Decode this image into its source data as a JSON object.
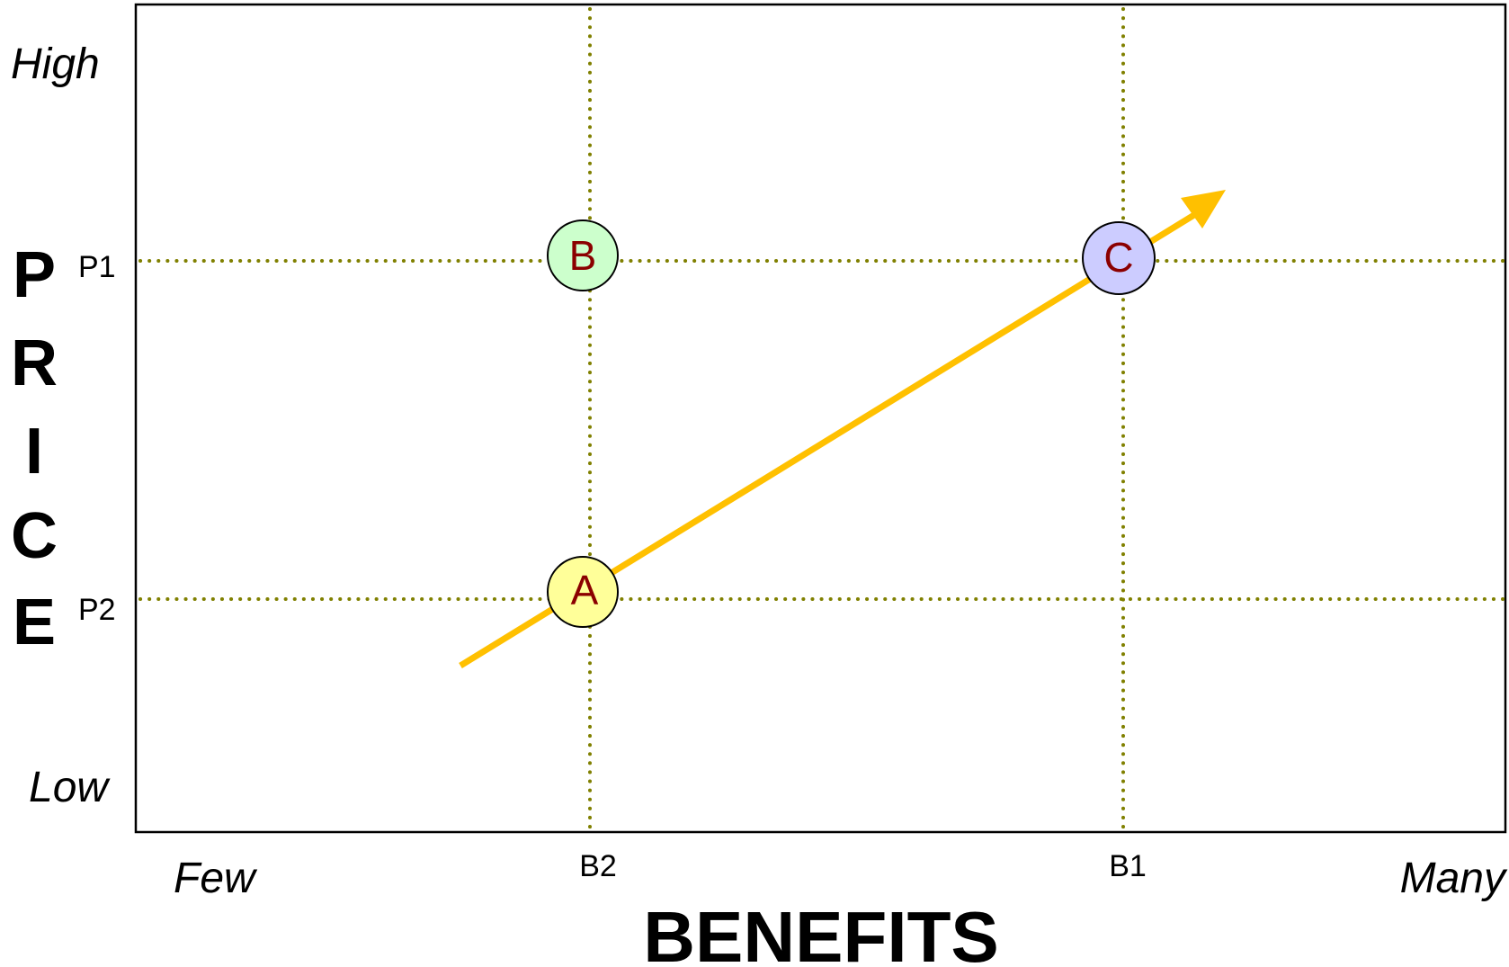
{
  "diagram": {
    "x_axis": {
      "title": "BENEFITS",
      "low_label": "Few",
      "high_label": "Many",
      "ticks": [
        {
          "id": "b2",
          "label": "B2"
        },
        {
          "id": "b1",
          "label": "B1"
        }
      ]
    },
    "y_axis": {
      "title_letters": [
        "P",
        "R",
        "I",
        "C",
        "E"
      ],
      "high_label": "High",
      "low_label": "Low",
      "ticks": [
        {
          "id": "p1",
          "label": "P1"
        },
        {
          "id": "p2",
          "label": "P2"
        }
      ]
    },
    "points": [
      {
        "label": "A",
        "benefit": "B2",
        "price": "P2",
        "fill": "#ffff99"
      },
      {
        "label": "B",
        "benefit": "B2",
        "price": "P1",
        "fill": "#ccffcc"
      },
      {
        "label": "C",
        "benefit": "B1",
        "price": "P1",
        "fill": "#ccccff"
      }
    ],
    "arrow": {
      "from": "A",
      "to": "C",
      "color": "#ffc000"
    },
    "colors": {
      "guide_lines": "#808000",
      "point_labels": "#8b0000",
      "frame": "#000000"
    }
  }
}
